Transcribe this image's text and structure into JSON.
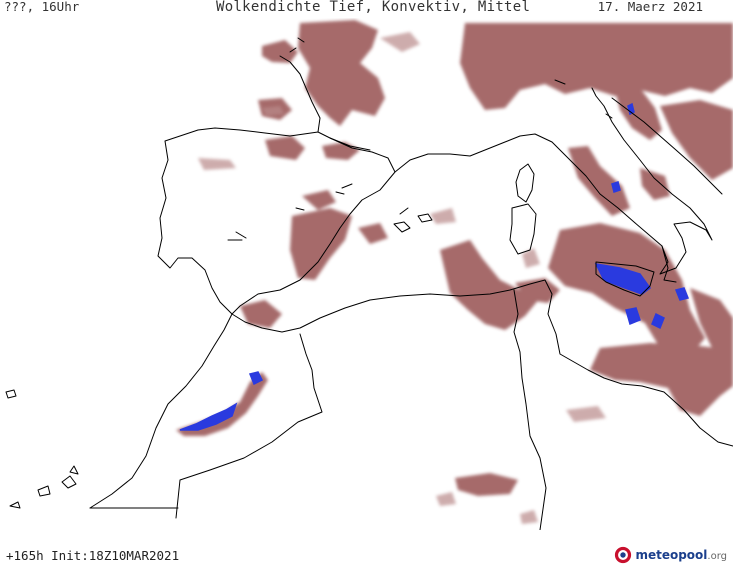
{
  "header": {
    "lead_label": "???, 16Uhr",
    "title": "Wolkendichte  Tief, Konvektiv, Mittel",
    "date": "17. Maerz 2021"
  },
  "footer": {
    "run_info": "+165h Init:18Z10MAR2021",
    "logo_main": "meteopool",
    "logo_suffix": ".org"
  },
  "legend_colors": {
    "cloud_density": "#9a5656",
    "cloud_density_light": "#b98a8a",
    "convective_peak": "#2a3adf",
    "coastline": "#000000",
    "background": "#ffffff"
  }
}
